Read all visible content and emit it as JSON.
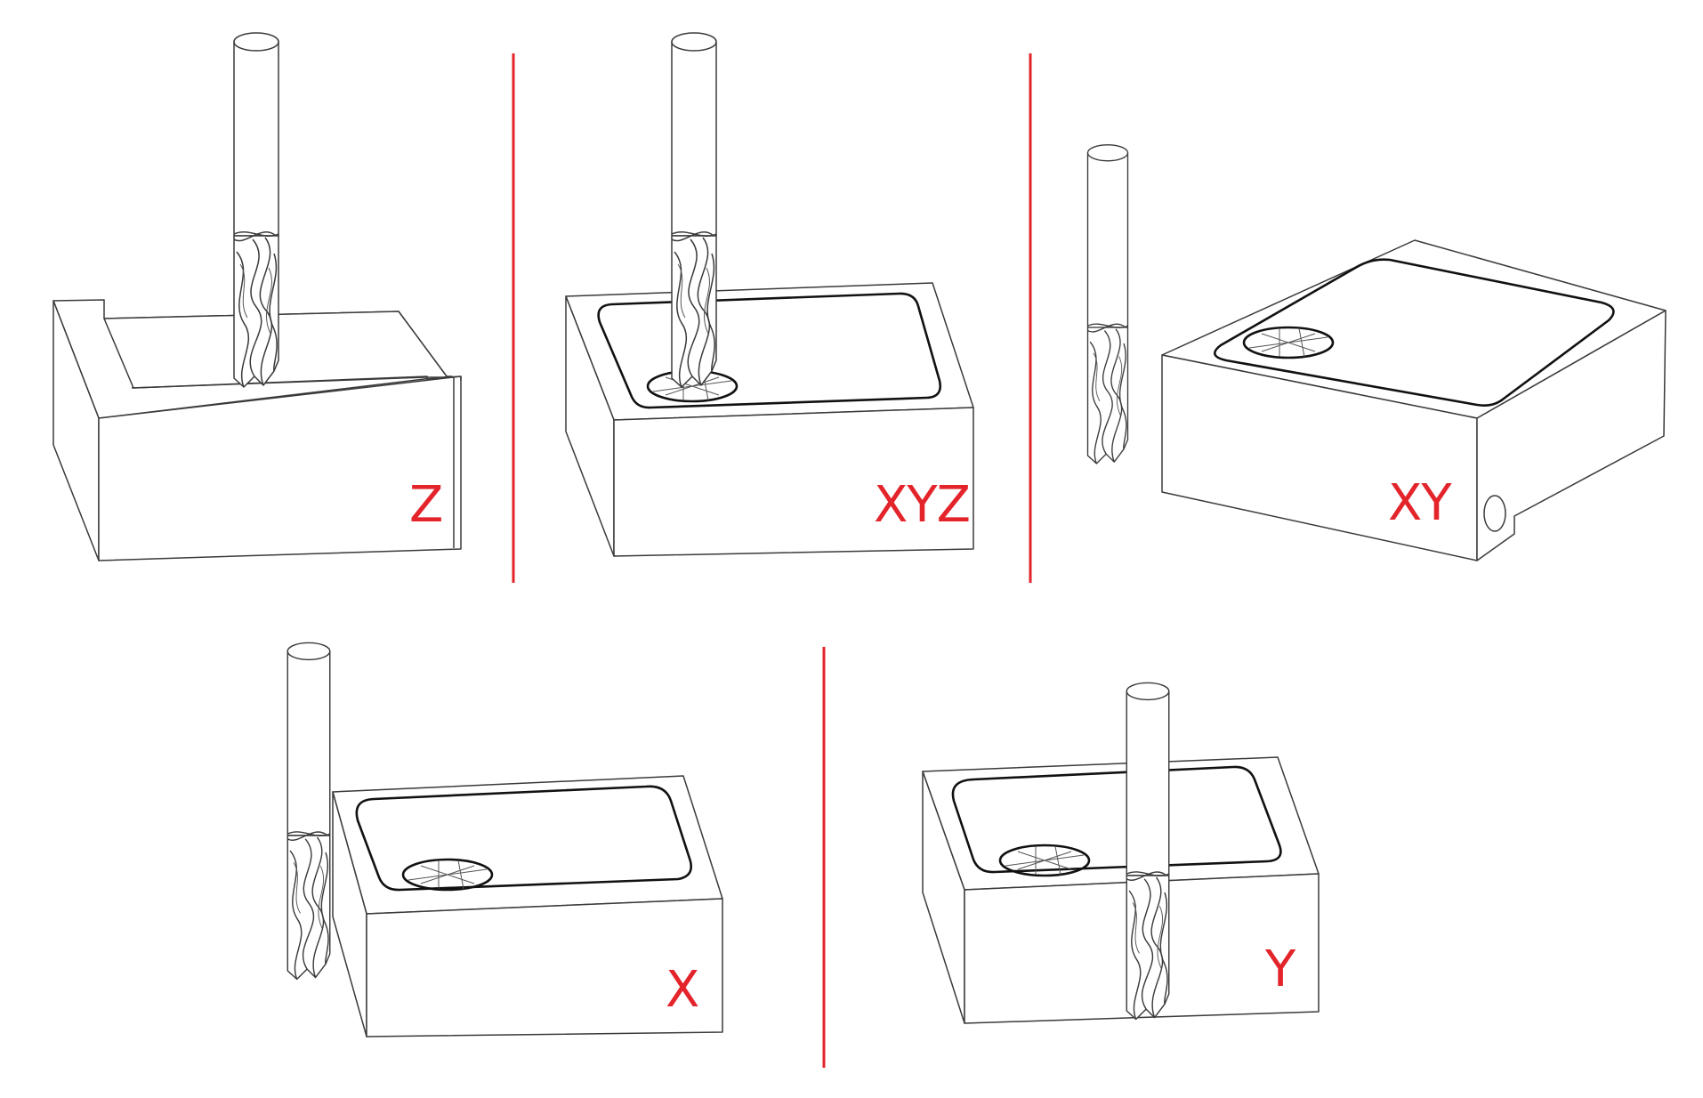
{
  "diagram": {
    "accent_color": "#e3242b",
    "panels": [
      {
        "id": "z",
        "label": "Z"
      },
      {
        "id": "xyz",
        "label": "XYZ"
      },
      {
        "id": "xy",
        "label": "XY"
      },
      {
        "id": "x",
        "label": "X"
      },
      {
        "id": "y",
        "label": "Y"
      }
    ]
  }
}
